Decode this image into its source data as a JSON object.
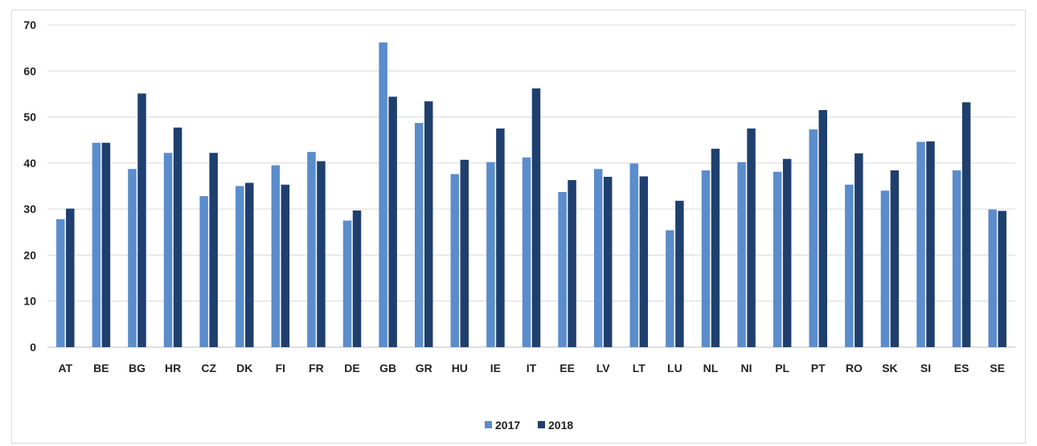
{
  "chart_data": {
    "type": "bar",
    "title": "",
    "xlabel": "",
    "ylabel": "",
    "ylim": [
      0,
      70
    ],
    "yticks": [
      0,
      10,
      20,
      30,
      40,
      50,
      60,
      70
    ],
    "grid": true,
    "legend_position": "bottom",
    "categories": [
      "AT",
      "BE",
      "BG",
      "HR",
      "CZ",
      "DK",
      "FI",
      "FR",
      "DE",
      "GB",
      "GR",
      "HU",
      "IE",
      "IT",
      "EE",
      "LV",
      "LT",
      "LU",
      "NL",
      "NI",
      "PL",
      "PT",
      "RO",
      "SK",
      "SI",
      "ES",
      "SE"
    ],
    "series": [
      {
        "name": "2017",
        "color": "#5b8ccc",
        "values": [
          27.8,
          44.4,
          38.7,
          42.2,
          32.8,
          35.0,
          39.5,
          42.4,
          27.5,
          66.2,
          48.7,
          37.6,
          40.2,
          41.2,
          33.7,
          38.7,
          39.9,
          25.4,
          38.4,
          40.2,
          38.1,
          47.3,
          35.3,
          34.0,
          44.6,
          38.4,
          29.9
        ]
      },
      {
        "name": "2018",
        "color": "#1f3f6e",
        "values": [
          30.1,
          44.4,
          55.1,
          47.7,
          42.2,
          35.7,
          35.3,
          40.4,
          29.7,
          54.4,
          53.4,
          40.7,
          47.5,
          56.2,
          36.3,
          37.0,
          37.1,
          31.8,
          43.1,
          47.5,
          40.9,
          51.5,
          42.1,
          38.4,
          44.7,
          53.2,
          29.6
        ]
      }
    ]
  }
}
